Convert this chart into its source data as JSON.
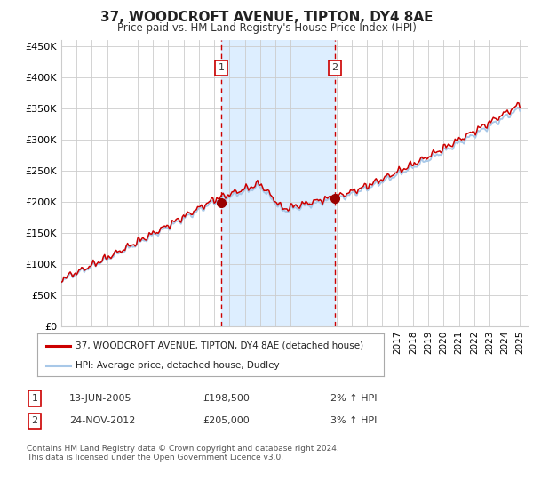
{
  "title": "37, WOODCROFT AVENUE, TIPTON, DY4 8AE",
  "subtitle": "Price paid vs. HM Land Registry's House Price Index (HPI)",
  "legend_line1": "37, WOODCROFT AVENUE, TIPTON, DY4 8AE (detached house)",
  "legend_line2": "HPI: Average price, detached house, Dudley",
  "annotation1_date": "13-JUN-2005",
  "annotation1_price": "£198,500",
  "annotation1_hpi": "2% ↑ HPI",
  "annotation2_date": "24-NOV-2012",
  "annotation2_price": "£205,000",
  "annotation2_hpi": "3% ↑ HPI",
  "footer": "Contains HM Land Registry data © Crown copyright and database right 2024.\nThis data is licensed under the Open Government Licence v3.0.",
  "hpi_color": "#a8c8e8",
  "price_color": "#cc0000",
  "marker_color": "#990000",
  "vline_color": "#cc0000",
  "shade_color": "#ddeeff",
  "grid_color": "#cccccc",
  "background_color": "#ffffff",
  "ylim": [
    0,
    460000
  ],
  "yticks": [
    0,
    50000,
    100000,
    150000,
    200000,
    250000,
    300000,
    350000,
    400000,
    450000
  ],
  "ytick_labels": [
    "£0",
    "£50K",
    "£100K",
    "£150K",
    "£200K",
    "£250K",
    "£300K",
    "£350K",
    "£400K",
    "£450K"
  ],
  "sale1_x": 2005.45,
  "sale1_y": 198500,
  "sale2_x": 2012.9,
  "sale2_y": 205000,
  "xmin": 1995,
  "xmax": 2025.5
}
